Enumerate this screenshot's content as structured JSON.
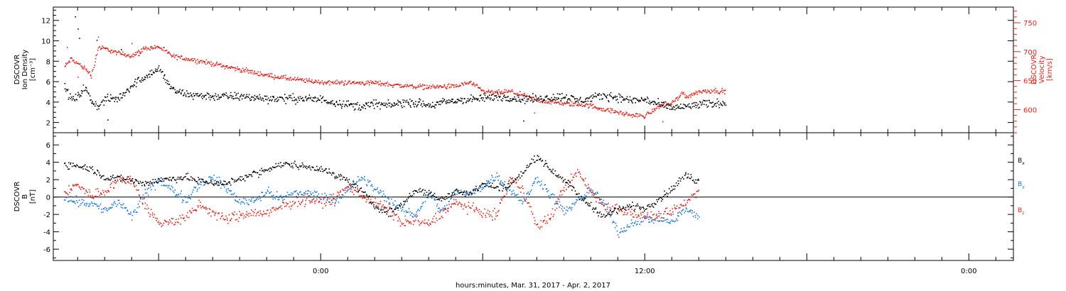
{
  "chart_data": [
    {
      "type": "scatter",
      "panel": "top",
      "left_axis": {
        "label_lines": [
          "DSCOVR",
          "Ion Density",
          "[cm⁻³]"
        ],
        "ylim": [
          1,
          13.3
        ],
        "ticks": [
          2,
          4,
          6,
          8,
          10,
          12
        ],
        "tick_labels": [
          "2",
          "4",
          "6",
          "8",
          "10",
          "12"
        ]
      },
      "right_axis": {
        "label_lines": [
          "DSCOVR",
          "Velocity",
          "[km/s]"
        ],
        "ylim": [
          560,
          777
        ],
        "ticks": [
          600,
          650,
          700,
          750
        ],
        "tick_labels": [
          "600",
          "650",
          "700",
          "750"
        ]
      },
      "series": [
        {
          "key": "density",
          "axis": "left",
          "color": "#000000",
          "anchors": [
            [
              -19,
              5.5
            ],
            [
              -18.5,
              4.3
            ],
            [
              -18,
              4.6
            ],
            [
              -17.5,
              5.5
            ],
            [
              -17,
              4.1
            ],
            [
              -16.5,
              3.6
            ],
            [
              -16,
              4.3
            ],
            [
              -15,
              4.4
            ],
            [
              -14,
              5.7
            ],
            [
              -13,
              6.6
            ],
            [
              -12,
              7.3
            ],
            [
              -11,
              5.2
            ],
            [
              -10,
              4.8
            ],
            [
              -8,
              4.6
            ],
            [
              -6,
              4.6
            ],
            [
              -4,
              4.4
            ],
            [
              -2,
              4.4
            ],
            [
              0,
              4.3
            ],
            [
              2,
              3.8
            ],
            [
              3,
              3.6
            ],
            [
              4,
              3.9
            ],
            [
              5,
              3.7
            ],
            [
              6,
              4.0
            ],
            [
              7,
              4.0
            ],
            [
              8,
              3.7
            ],
            [
              9,
              4.0
            ],
            [
              10,
              4.2
            ],
            [
              11,
              4.3
            ],
            [
              12,
              4.4
            ],
            [
              13,
              4.6
            ],
            [
              14,
              4.5
            ],
            [
              15,
              4.3
            ],
            [
              16,
              4.4
            ],
            [
              17,
              4.5
            ],
            [
              18,
              4.6
            ],
            [
              19,
              4.2
            ],
            [
              20,
              4.4
            ],
            [
              21,
              4.7
            ],
            [
              22,
              4.5
            ],
            [
              23,
              4.2
            ],
            [
              24,
              4.3
            ],
            [
              25,
              3.8
            ],
            [
              26,
              3.5
            ],
            [
              27,
              3.6
            ],
            [
              28,
              3.8
            ],
            [
              29,
              3.9
            ],
            [
              30,
              4.0
            ]
          ],
          "noise": 0.35,
          "spikes": [
            [
              -18.2,
              12.4
            ],
            [
              -18.0,
              11.2
            ],
            [
              -17.9,
              10.3
            ],
            [
              -16.6,
              10.1
            ],
            [
              -15.8,
              2.3
            ],
            [
              -14.8,
              9.2
            ],
            [
              -13.5,
              8.6
            ],
            [
              15.0,
              2.2
            ]
          ]
        },
        {
          "key": "velocity",
          "axis": "right",
          "color": "#e0231e",
          "anchors": [
            [
              -19,
              675
            ],
            [
              -18.5,
              688
            ],
            [
              -18,
              680
            ],
            [
              -17.5,
              672
            ],
            [
              -17,
              660
            ],
            [
              -16.5,
              708
            ],
            [
              -16,
              706
            ],
            [
              -15,
              698
            ],
            [
              -14,
              694
            ],
            [
              -13,
              707
            ],
            [
              -12,
              709
            ],
            [
              -11,
              693
            ],
            [
              -10,
              689
            ],
            [
              -8,
              680
            ],
            [
              -6,
              670
            ],
            [
              -4,
              660
            ],
            [
              -2,
              653
            ],
            [
              0,
              648
            ],
            [
              2,
              647
            ],
            [
              4,
              647
            ],
            [
              6,
              642
            ],
            [
              8,
              640
            ],
            [
              10,
              641
            ],
            [
              11,
              648
            ],
            [
              12,
              632
            ],
            [
              13,
              630
            ],
            [
              14,
              632
            ],
            [
              15,
              625
            ],
            [
              16,
              617
            ],
            [
              17,
              614
            ],
            [
              18,
              611
            ],
            [
              19,
              610
            ],
            [
              20,
              607
            ],
            [
              21,
              601
            ],
            [
              22,
              596
            ],
            [
              23,
              591
            ],
            [
              24,
              590
            ],
            [
              25,
              606
            ],
            [
              26,
              612
            ],
            [
              26.8,
              630
            ],
            [
              27,
              623
            ],
            [
              28,
              632
            ],
            [
              29,
              634
            ],
            [
              30,
              632
            ]
          ],
          "noise": 3.5,
          "spikes": [
            [
              -18.8,
              708
            ],
            [
              -18.0,
              657
            ],
            [
              -16.5,
              726
            ],
            [
              -14.0,
              715
            ],
            [
              15.8,
              595
            ],
            [
              25.3,
              580
            ]
          ]
        }
      ]
    },
    {
      "type": "scatter",
      "panel": "bottom",
      "left_axis": {
        "label_lines": [
          "DSCOVR",
          "B",
          "[nT]"
        ],
        "ylim": [
          -7.3,
          7.4
        ],
        "ticks": [
          -6,
          -4,
          -2,
          0,
          2,
          4,
          6
        ],
        "tick_labels": [
          "-6",
          "-4",
          "-2",
          "0",
          "2",
          "4",
          "6"
        ]
      },
      "zero_line": true,
      "series": [
        {
          "key": "bx",
          "label": "B",
          "subscript": "x",
          "color": "#000000",
          "anchors": [
            [
              -19,
              3.8
            ],
            [
              -18,
              3.7
            ],
            [
              -17,
              3.3
            ],
            [
              -16,
              2.3
            ],
            [
              -15,
              2.2
            ],
            [
              -14,
              2.0
            ],
            [
              -13,
              1.6
            ],
            [
              -12,
              2.0
            ],
            [
              -11,
              2.2
            ],
            [
              -10,
              2.3
            ],
            [
              -9,
              1.9
            ],
            [
              -8,
              1.7
            ],
            [
              -7,
              1.6
            ],
            [
              -6,
              2.2
            ],
            [
              -5,
              2.7
            ],
            [
              -4,
              3.2
            ],
            [
              -3,
              3.8
            ],
            [
              -2,
              3.8
            ],
            [
              -1,
              3.5
            ],
            [
              0,
              3.4
            ],
            [
              1,
              2.5
            ],
            [
              2,
              2.0
            ],
            [
              3,
              0.7
            ],
            [
              4,
              -1.0
            ],
            [
              5,
              -1.8
            ],
            [
              6,
              -0.8
            ],
            [
              7,
              0.9
            ],
            [
              8,
              0.5
            ],
            [
              9,
              -0.3
            ],
            [
              10,
              0.8
            ],
            [
              11,
              0.5
            ],
            [
              12,
              1.6
            ],
            [
              13,
              1.1
            ],
            [
              14,
              1.4
            ],
            [
              15,
              3.0
            ],
            [
              16,
              4.8
            ],
            [
              17,
              3.2
            ],
            [
              18,
              2.1
            ],
            [
              19,
              0.3
            ],
            [
              20,
              -1.0
            ],
            [
              21,
              -2.2
            ],
            [
              22,
              -1.3
            ],
            [
              23,
              -1.0
            ],
            [
              24,
              -1.2
            ],
            [
              25,
              -0.2
            ],
            [
              26,
              1.0
            ],
            [
              27,
              2.6
            ],
            [
              28,
              1.8
            ]
          ],
          "noise": 0.35,
          "spikes": []
        },
        {
          "key": "by",
          "label": "B",
          "subscript": "y",
          "color": "#1677d4",
          "anchors": [
            [
              -19,
              0.0
            ],
            [
              -18,
              -0.5
            ],
            [
              -17,
              -0.7
            ],
            [
              -16,
              -1.5
            ],
            [
              -15,
              -0.5
            ],
            [
              -14,
              -2.2
            ],
            [
              -13,
              0.5
            ],
            [
              -12,
              2.0
            ],
            [
              -11,
              0.8
            ],
            [
              -10,
              -0.2
            ],
            [
              -9,
              1.6
            ],
            [
              -8,
              2.3
            ],
            [
              -7,
              1.0
            ],
            [
              -6,
              -0.5
            ],
            [
              -5,
              -0.3
            ],
            [
              -4,
              0.7
            ],
            [
              -3,
              -0.2
            ],
            [
              -2,
              0.6
            ],
            [
              -1,
              0.5
            ],
            [
              0,
              0.2
            ],
            [
              1,
              -0.3
            ],
            [
              2,
              0.8
            ],
            [
              3,
              2.3
            ],
            [
              4,
              1.0
            ],
            [
              5,
              -0.2
            ],
            [
              6,
              -1.5
            ],
            [
              7,
              -2.0
            ],
            [
              8,
              0.6
            ],
            [
              9,
              -1.7
            ],
            [
              10,
              0.7
            ],
            [
              11,
              0.3
            ],
            [
              12,
              1.4
            ],
            [
              13,
              2.6
            ],
            [
              14,
              0.8
            ],
            [
              15,
              -0.5
            ],
            [
              16,
              2.3
            ],
            [
              17,
              0.3
            ],
            [
              18,
              -1.6
            ],
            [
              19,
              -0.5
            ],
            [
              20,
              0.9
            ],
            [
              21,
              -0.8
            ],
            [
              22,
              -4.0
            ],
            [
              23,
              -3.0
            ],
            [
              24,
              -2.4
            ],
            [
              25,
              -2.5
            ],
            [
              26,
              -2.7
            ],
            [
              27,
              -1.4
            ],
            [
              28,
              -2.2
            ]
          ],
          "noise": 0.45,
          "spikes": []
        },
        {
          "key": "bz",
          "label": "B",
          "subscript": "z",
          "color": "#e0231e",
          "anchors": [
            [
              -19,
              0.6
            ],
            [
              -18,
              1.4
            ],
            [
              -17,
              0.2
            ],
            [
              -16,
              0.8
            ],
            [
              -15,
              2.0
            ],
            [
              -14,
              2.1
            ],
            [
              -13,
              -1.0
            ],
            [
              -12,
              -3.0
            ],
            [
              -11,
              -2.7
            ],
            [
              -10,
              -2.4
            ],
            [
              -9,
              -0.8
            ],
            [
              -8,
              -1.8
            ],
            [
              -7,
              -2.5
            ],
            [
              -6,
              -2.1
            ],
            [
              -5,
              -1.7
            ],
            [
              -4,
              -1.9
            ],
            [
              -3,
              -1.1
            ],
            [
              -2,
              -0.5
            ],
            [
              -1,
              -0.2
            ],
            [
              0,
              -0.5
            ],
            [
              1,
              -0.2
            ],
            [
              2,
              1.3
            ],
            [
              3,
              0.3
            ],
            [
              4,
              -0.6
            ],
            [
              5,
              -1.4
            ],
            [
              6,
              -3.0
            ],
            [
              7,
              -2.6
            ],
            [
              8,
              -3.1
            ],
            [
              9,
              -1.6
            ],
            [
              10,
              -0.6
            ],
            [
              11,
              -1.2
            ],
            [
              12,
              -1.8
            ],
            [
              13,
              -2.0
            ],
            [
              14,
              2.2
            ],
            [
              15,
              0.8
            ],
            [
              16,
              -3.4
            ],
            [
              17,
              -2.3
            ],
            [
              18,
              1.2
            ],
            [
              19,
              3.0
            ],
            [
              20,
              0.6
            ],
            [
              21,
              -1.0
            ],
            [
              22,
              -1.2
            ],
            [
              23,
              -1.8
            ],
            [
              24,
              -2.2
            ],
            [
              25,
              -2.2
            ],
            [
              26,
              -1.6
            ],
            [
              27,
              -0.7
            ],
            [
              28,
              1.0
            ]
          ],
          "noise": 0.5,
          "spikes": []
        }
      ]
    }
  ],
  "x_axis": {
    "label": "hours:minutes, Mar. 31, 2017 - Apr.  2, 2017",
    "range": [
      -19.8,
      51.3
    ],
    "major_ticks": [
      0,
      24,
      48
    ],
    "tick_labels": [
      "0:00",
      "12:00",
      "0:00"
    ]
  }
}
